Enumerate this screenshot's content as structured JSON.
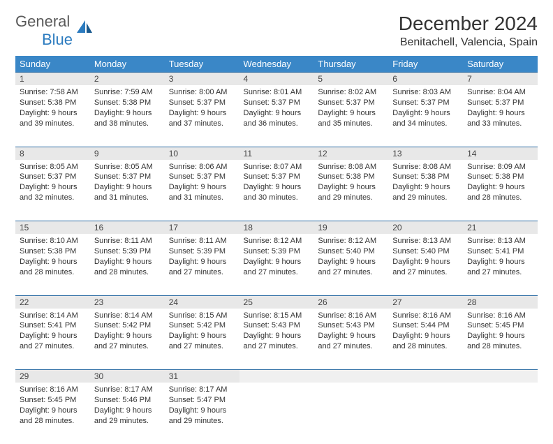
{
  "brand": {
    "name1": "General",
    "name2": "Blue"
  },
  "title": "December 2024",
  "location": "Benitachell, Valencia, Spain",
  "colors": {
    "header_bg": "#3a87c7",
    "header_text": "#ffffff",
    "daynum_bg": "#e8e8e8",
    "border": "#2b6ca3",
    "brand_blue": "#2b7bbf",
    "brand_gray": "#5a5a5a"
  },
  "weekdays": [
    "Sunday",
    "Monday",
    "Tuesday",
    "Wednesday",
    "Thursday",
    "Friday",
    "Saturday"
  ],
  "weeks": [
    [
      {
        "n": "1",
        "sunrise": "7:58 AM",
        "sunset": "5:38 PM",
        "daylight": "9 hours and 39 minutes."
      },
      {
        "n": "2",
        "sunrise": "7:59 AM",
        "sunset": "5:38 PM",
        "daylight": "9 hours and 38 minutes."
      },
      {
        "n": "3",
        "sunrise": "8:00 AM",
        "sunset": "5:37 PM",
        "daylight": "9 hours and 37 minutes."
      },
      {
        "n": "4",
        "sunrise": "8:01 AM",
        "sunset": "5:37 PM",
        "daylight": "9 hours and 36 minutes."
      },
      {
        "n": "5",
        "sunrise": "8:02 AM",
        "sunset": "5:37 PM",
        "daylight": "9 hours and 35 minutes."
      },
      {
        "n": "6",
        "sunrise": "8:03 AM",
        "sunset": "5:37 PM",
        "daylight": "9 hours and 34 minutes."
      },
      {
        "n": "7",
        "sunrise": "8:04 AM",
        "sunset": "5:37 PM",
        "daylight": "9 hours and 33 minutes."
      }
    ],
    [
      {
        "n": "8",
        "sunrise": "8:05 AM",
        "sunset": "5:37 PM",
        "daylight": "9 hours and 32 minutes."
      },
      {
        "n": "9",
        "sunrise": "8:05 AM",
        "sunset": "5:37 PM",
        "daylight": "9 hours and 31 minutes."
      },
      {
        "n": "10",
        "sunrise": "8:06 AM",
        "sunset": "5:37 PM",
        "daylight": "9 hours and 31 minutes."
      },
      {
        "n": "11",
        "sunrise": "8:07 AM",
        "sunset": "5:37 PM",
        "daylight": "9 hours and 30 minutes."
      },
      {
        "n": "12",
        "sunrise": "8:08 AM",
        "sunset": "5:38 PM",
        "daylight": "9 hours and 29 minutes."
      },
      {
        "n": "13",
        "sunrise": "8:08 AM",
        "sunset": "5:38 PM",
        "daylight": "9 hours and 29 minutes."
      },
      {
        "n": "14",
        "sunrise": "8:09 AM",
        "sunset": "5:38 PM",
        "daylight": "9 hours and 28 minutes."
      }
    ],
    [
      {
        "n": "15",
        "sunrise": "8:10 AM",
        "sunset": "5:38 PM",
        "daylight": "9 hours and 28 minutes."
      },
      {
        "n": "16",
        "sunrise": "8:11 AM",
        "sunset": "5:39 PM",
        "daylight": "9 hours and 28 minutes."
      },
      {
        "n": "17",
        "sunrise": "8:11 AM",
        "sunset": "5:39 PM",
        "daylight": "9 hours and 27 minutes."
      },
      {
        "n": "18",
        "sunrise": "8:12 AM",
        "sunset": "5:39 PM",
        "daylight": "9 hours and 27 minutes."
      },
      {
        "n": "19",
        "sunrise": "8:12 AM",
        "sunset": "5:40 PM",
        "daylight": "9 hours and 27 minutes."
      },
      {
        "n": "20",
        "sunrise": "8:13 AM",
        "sunset": "5:40 PM",
        "daylight": "9 hours and 27 minutes."
      },
      {
        "n": "21",
        "sunrise": "8:13 AM",
        "sunset": "5:41 PM",
        "daylight": "9 hours and 27 minutes."
      }
    ],
    [
      {
        "n": "22",
        "sunrise": "8:14 AM",
        "sunset": "5:41 PM",
        "daylight": "9 hours and 27 minutes."
      },
      {
        "n": "23",
        "sunrise": "8:14 AM",
        "sunset": "5:42 PM",
        "daylight": "9 hours and 27 minutes."
      },
      {
        "n": "24",
        "sunrise": "8:15 AM",
        "sunset": "5:42 PM",
        "daylight": "9 hours and 27 minutes."
      },
      {
        "n": "25",
        "sunrise": "8:15 AM",
        "sunset": "5:43 PM",
        "daylight": "9 hours and 27 minutes."
      },
      {
        "n": "26",
        "sunrise": "8:16 AM",
        "sunset": "5:43 PM",
        "daylight": "9 hours and 27 minutes."
      },
      {
        "n": "27",
        "sunrise": "8:16 AM",
        "sunset": "5:44 PM",
        "daylight": "9 hours and 28 minutes."
      },
      {
        "n": "28",
        "sunrise": "8:16 AM",
        "sunset": "5:45 PM",
        "daylight": "9 hours and 28 minutes."
      }
    ],
    [
      {
        "n": "29",
        "sunrise": "8:16 AM",
        "sunset": "5:45 PM",
        "daylight": "9 hours and 28 minutes."
      },
      {
        "n": "30",
        "sunrise": "8:17 AM",
        "sunset": "5:46 PM",
        "daylight": "9 hours and 29 minutes."
      },
      {
        "n": "31",
        "sunrise": "8:17 AM",
        "sunset": "5:47 PM",
        "daylight": "9 hours and 29 minutes."
      },
      null,
      null,
      null,
      null
    ]
  ],
  "labels": {
    "sunrise": "Sunrise:",
    "sunset": "Sunset:",
    "daylight": "Daylight:"
  }
}
